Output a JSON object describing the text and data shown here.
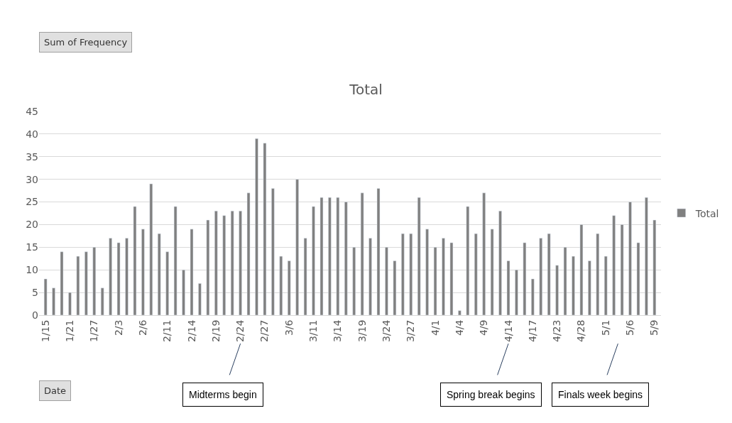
{
  "chart_data": {
    "type": "bar",
    "title": "Total",
    "categories": [
      "1/15",
      null,
      null,
      "1/21",
      null,
      null,
      "1/27",
      null,
      null,
      "2/3",
      null,
      null,
      "2/6",
      null,
      null,
      "2/11",
      null,
      null,
      "2/14",
      null,
      null,
      "2/19",
      null,
      null,
      "2/24",
      null,
      null,
      "2/27",
      null,
      null,
      "3/6",
      null,
      null,
      "3/11",
      null,
      null,
      "3/14",
      null,
      null,
      "3/19",
      null,
      null,
      "3/24",
      null,
      null,
      "3/27",
      null,
      null,
      "4/1",
      null,
      null,
      "4/4",
      null,
      null,
      "4/9",
      null,
      null,
      "4/14",
      null,
      null,
      "4/17",
      null,
      null,
      "4/23",
      null,
      null,
      "4/28",
      null,
      null,
      "5/1",
      null,
      null,
      "5/6",
      null,
      null,
      "5/9"
    ],
    "series": [
      {
        "name": "Total",
        "color": "#808080",
        "values": [
          8,
          6,
          14,
          5,
          13,
          14,
          15,
          6,
          17,
          16,
          17,
          24,
          19,
          29,
          18,
          14,
          24,
          10,
          19,
          7,
          21,
          23,
          22,
          23,
          23,
          27,
          39,
          38,
          28,
          13,
          12,
          30,
          17,
          24,
          26,
          26,
          26,
          25,
          15,
          27,
          17,
          28,
          15,
          12,
          18,
          18,
          26,
          19,
          15,
          17,
          16,
          1,
          24,
          18,
          27,
          19,
          23,
          12,
          10,
          16,
          8,
          17,
          18,
          11,
          15,
          13,
          20,
          12,
          18,
          13,
          22,
          20,
          25,
          16,
          26,
          21
        ]
      }
    ],
    "ylim": [
      0,
      45
    ],
    "yticks": [
      0,
      5,
      10,
      15,
      20,
      25,
      30,
      35,
      40,
      45
    ],
    "grid": "y",
    "legend": "right",
    "annotations": [
      "Sum of Frequency",
      "Date",
      "Midterms begin",
      "Spring break begins",
      "Finals week begins"
    ]
  }
}
